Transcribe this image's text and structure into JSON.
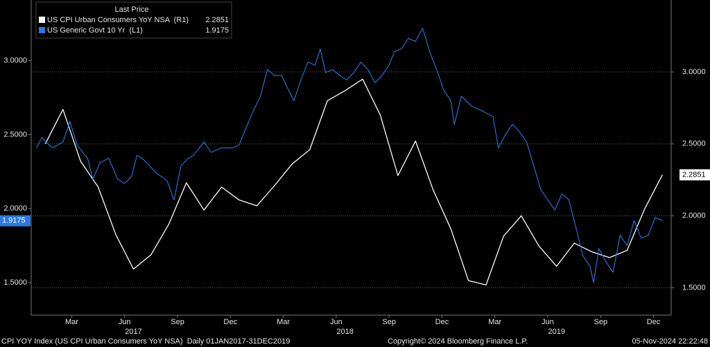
{
  "chart_data": {
    "type": "line",
    "legend_title": "Last Price",
    "legend_position": "upper left",
    "grid": true,
    "xlim": [
      -0.3,
      36
    ],
    "xticks": [
      {
        "value": 2,
        "label": "Mar"
      },
      {
        "value": 5,
        "label": "Jun"
      },
      {
        "value": 8,
        "label": "Sep"
      },
      {
        "value": 11,
        "label": "Dec"
      },
      {
        "value": 14,
        "label": "Mar"
      },
      {
        "value": 17,
        "label": "Jun"
      },
      {
        "value": 20,
        "label": "Sep"
      },
      {
        "value": 23,
        "label": "Dec"
      },
      {
        "value": 26,
        "label": "Mar"
      },
      {
        "value": 29,
        "label": "Jun"
      },
      {
        "value": 32,
        "label": "Sep"
      },
      {
        "value": 35,
        "label": "Dec"
      }
    ],
    "year_labels": [
      {
        "value": 5.5,
        "label": "2017"
      },
      {
        "value": 17.5,
        "label": "2018"
      },
      {
        "value": 29.5,
        "label": "2019"
      }
    ],
    "ylim": [
      1.28,
      3.41
    ],
    "yticks": [
      {
        "value": 1.5,
        "label": "1.5000"
      },
      {
        "value": 2,
        "label": "2.0000"
      },
      {
        "value": 2.5,
        "label": "2.5000"
      },
      {
        "value": 3,
        "label": "3.0000"
      }
    ],
    "y2lim": [
      1.31,
      3.5
    ],
    "y2ticks": [
      {
        "value": 1.5,
        "label": "1.5000"
      },
      {
        "value": 2,
        "label": "2.0000"
      },
      {
        "value": 2.5,
        "label": "2.5000"
      },
      {
        "value": 3,
        "label": "3.0000"
      }
    ],
    "series": [
      {
        "name": "US CPI Urban Consumers YoY NSA  (R1)",
        "color": "#ffffff",
        "axis": "y2",
        "x": [
          0.5,
          1.5,
          2.5,
          3.5,
          4.5,
          5.5,
          6.5,
          7.5,
          8.5,
          9.5,
          10.5,
          11.5,
          12.5,
          13.5,
          14.5,
          15.5,
          16.5,
          17.5,
          18.5,
          19.5,
          20.5,
          21.5,
          22.5,
          23.5,
          24.5,
          25.5,
          26.5,
          27.5,
          28.5,
          29.5,
          30.5,
          31.5,
          32.5,
          33.5,
          34.5,
          35.5
        ],
        "values": [
          2.5,
          2.74,
          2.38,
          2.2,
          1.87,
          1.63,
          1.73,
          1.94,
          2.23,
          2.04,
          2.2,
          2.11,
          2.07,
          2.21,
          2.36,
          2.46,
          2.8,
          2.87,
          2.95,
          2.7,
          2.28,
          2.52,
          2.18,
          1.91,
          1.55,
          1.52,
          1.86,
          2.0,
          1.79,
          1.65,
          1.81,
          1.75,
          1.71,
          1.76,
          2.05,
          2.2851
        ]
      },
      {
        "name": "US Generic Govt 10 Yr  (L1)",
        "color": "#2a78e0",
        "axis": "y",
        "x": [
          0,
          0.3,
          0.9,
          1.5,
          1.9,
          2.3,
          2.9,
          3.2,
          3.6,
          4.1,
          4.6,
          5.0,
          5.4,
          5.7,
          6.0,
          6.4,
          6.8,
          7.4,
          7.8,
          8.2,
          8.6,
          8.9,
          9.5,
          9.9,
          10.5,
          11.1,
          11.5,
          11.9,
          12.3,
          12.7,
          13.1,
          13.5,
          13.9,
          14.3,
          14.6,
          15.0,
          15.4,
          15.8,
          16.1,
          16.4,
          16.8,
          17.2,
          17.6,
          18.0,
          18.4,
          18.8,
          19.2,
          19.6,
          20.0,
          20.3,
          20.7,
          21.1,
          21.5,
          21.9,
          22.3,
          22.7,
          23.1,
          23.5,
          23.7,
          24.1,
          24.7,
          25.3,
          25.9,
          26.2,
          26.6,
          27.0,
          27.4,
          27.8,
          28.2,
          28.6,
          29.0,
          29.4,
          29.8,
          30.2,
          30.6,
          31.0,
          31.4,
          31.6,
          31.9,
          32.3,
          32.7,
          33.1,
          33.5,
          33.9,
          34.3,
          34.7,
          35.1,
          35.5
        ],
        "values": [
          2.41,
          2.48,
          2.41,
          2.45,
          2.59,
          2.43,
          2.34,
          2.2,
          2.31,
          2.34,
          2.2,
          2.17,
          2.22,
          2.36,
          2.34,
          2.29,
          2.24,
          2.19,
          2.06,
          2.29,
          2.34,
          2.36,
          2.45,
          2.38,
          2.41,
          2.41,
          2.43,
          2.55,
          2.66,
          2.76,
          2.94,
          2.9,
          2.9,
          2.8,
          2.73,
          2.87,
          2.99,
          2.97,
          3.08,
          2.92,
          2.94,
          2.9,
          2.87,
          2.92,
          2.99,
          2.94,
          2.85,
          2.9,
          2.97,
          3.06,
          3.08,
          3.15,
          3.13,
          3.22,
          3.06,
          2.94,
          2.8,
          2.73,
          2.57,
          2.76,
          2.69,
          2.66,
          2.62,
          2.41,
          2.5,
          2.57,
          2.52,
          2.45,
          2.29,
          2.13,
          2.06,
          1.99,
          2.1,
          2.06,
          1.87,
          1.68,
          1.61,
          1.5,
          1.73,
          1.64,
          1.57,
          1.82,
          1.75,
          1.92,
          1.8,
          1.82,
          1.94,
          1.9175
        ]
      }
    ],
    "footer_left": "CPI YOY Index (US CPI Urban Consumers YoY NSA)  Daily 01JAN2017-31DEC2019",
    "footer_center": "Copyright© 2024 Bloomberg Finance L.P.",
    "footer_right": "05-Nov-2024 22:22:48"
  }
}
